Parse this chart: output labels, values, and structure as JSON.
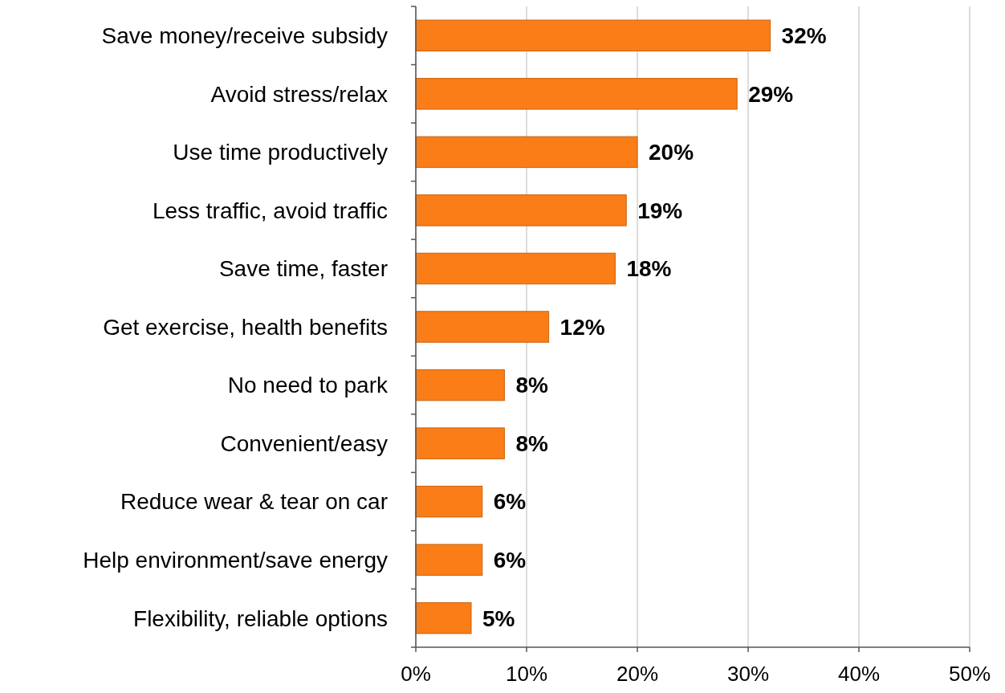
{
  "chart_data": {
    "type": "bar",
    "orientation": "horizontal",
    "categories": [
      "Save money/receive subsidy",
      "Avoid stress/relax",
      "Use time productively",
      "Less traffic, avoid traffic",
      "Save time, faster",
      "Get exercise, health benefits",
      "No need to park",
      "Convenient/easy",
      "Reduce wear & tear on car",
      "Help environment/save energy",
      "Flexibility, reliable options"
    ],
    "values": [
      32,
      29,
      20,
      19,
      18,
      12,
      8,
      8,
      6,
      6,
      5
    ],
    "value_labels": [
      "32%",
      "29%",
      "20%",
      "19%",
      "18%",
      "12%",
      "8%",
      "8%",
      "6%",
      "6%",
      "5%"
    ],
    "color": "#fa7d17",
    "xlim": [
      0,
      50
    ],
    "xticks": [
      {
        "value": 0,
        "label": "0%"
      },
      {
        "value": 10,
        "label": "10%"
      },
      {
        "value": 20,
        "label": "20%"
      },
      {
        "value": 30,
        "label": "30%"
      },
      {
        "value": 40,
        "label": "40%"
      },
      {
        "value": 50,
        "label": "50%"
      }
    ],
    "grid": "x"
  }
}
